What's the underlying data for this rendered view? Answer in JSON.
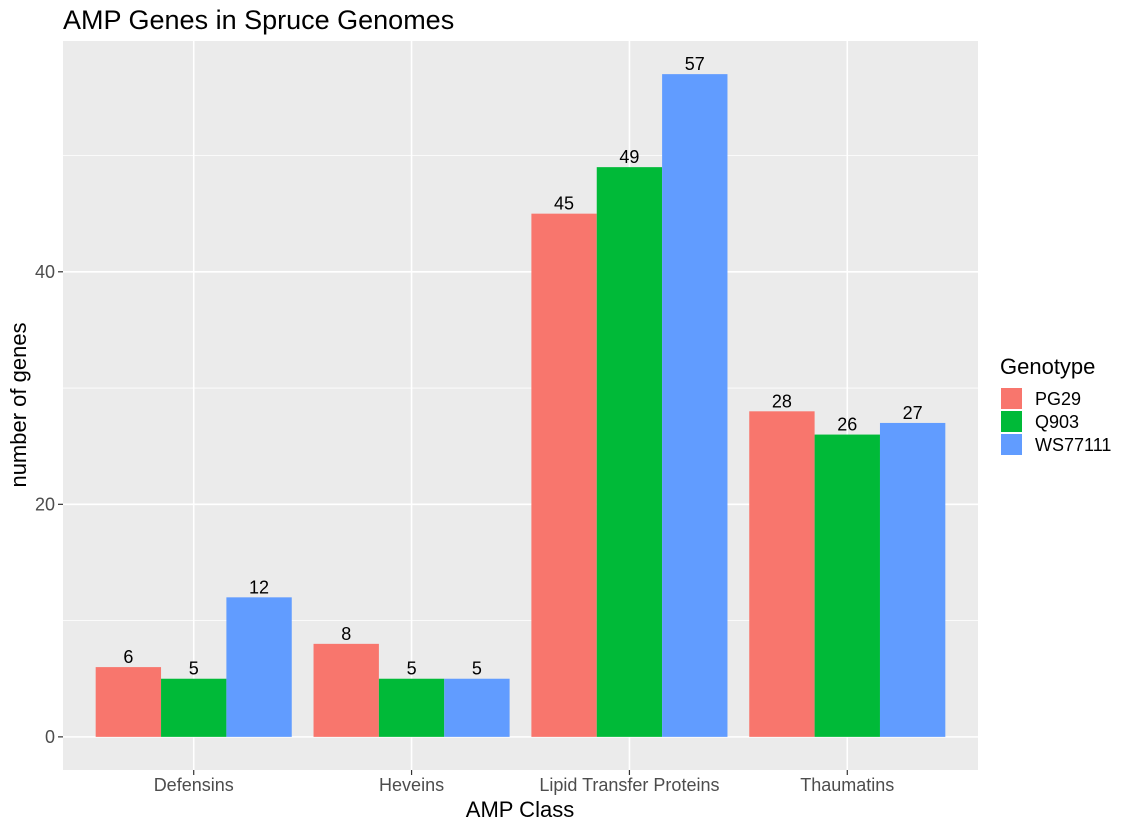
{
  "chart_data": {
    "type": "bar",
    "title": "AMP Genes in Spruce Genomes",
    "xlabel": "AMP Class",
    "ylabel": "number of genes",
    "categories": [
      "Defensins",
      "Heveins",
      "Lipid Transfer Proteins",
      "Thaumatins"
    ],
    "series": [
      {
        "name": "PG29",
        "color": "#F8766D",
        "values": [
          6,
          8,
          45,
          28
        ]
      },
      {
        "name": "Q903",
        "color": "#00BA38",
        "values": [
          5,
          5,
          49,
          26
        ]
      },
      {
        "name": "WS77111",
        "color": "#619CFF",
        "values": [
          12,
          5,
          57,
          27
        ]
      }
    ],
    "yticks": [
      0,
      20,
      40
    ],
    "ylim": [
      -2.85,
      59.85
    ],
    "legend": {
      "title": "Genotype",
      "position": "right"
    },
    "grid": true,
    "panel_background": "#EBEBEB",
    "grid_color": "#FFFFFF"
  }
}
